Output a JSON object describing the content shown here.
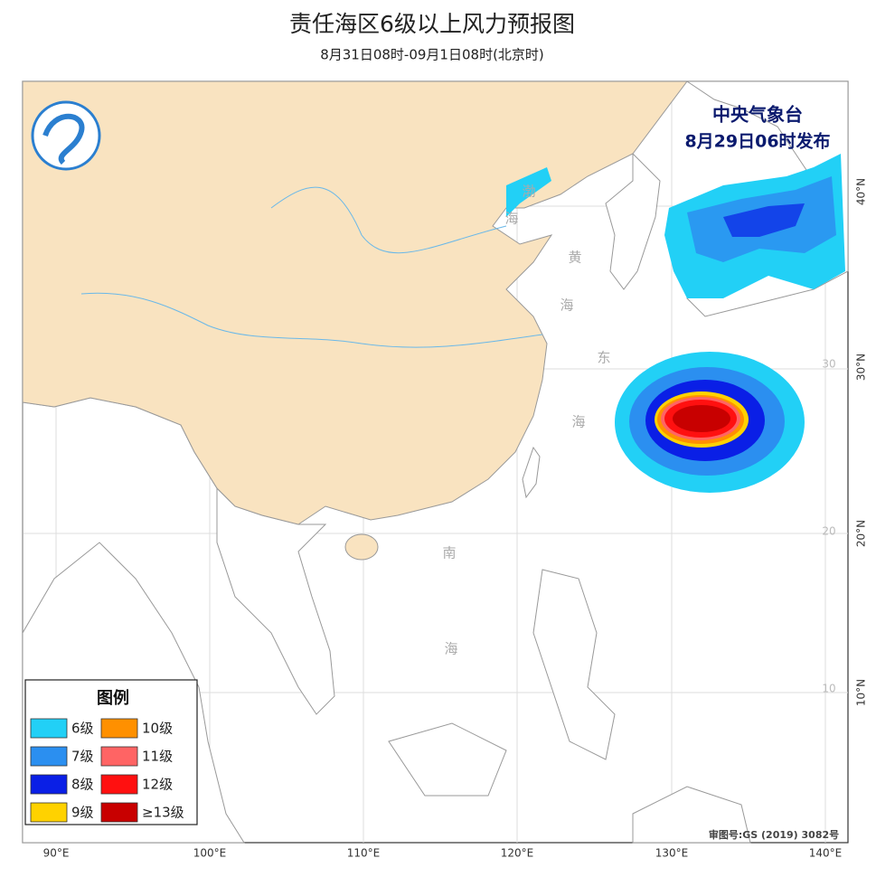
{
  "header": {
    "title": "责任海区6级以上风力预报图",
    "subtitle": "8月31日08时-09月1日08时(北京时)"
  },
  "issuer": {
    "agency": "中央气象台",
    "issued": "8月29日06时发布"
  },
  "legend": {
    "title": "图例",
    "items": [
      {
        "label": "6级",
        "color": "#22d0f6"
      },
      {
        "label": "7级",
        "color": "#2b8ff0"
      },
      {
        "label": "8级",
        "color": "#0a1fe6"
      },
      {
        "label": "9级",
        "color": "#ffd200"
      },
      {
        "label": "10级",
        "color": "#ff9000"
      },
      {
        "label": "11级",
        "color": "#ff6464"
      },
      {
        "label": "12级",
        "color": "#ff1010"
      },
      {
        "label": "≥13级",
        "color": "#c80000"
      }
    ]
  },
  "sea_labels": [
    "渤",
    "海",
    "黄",
    "海",
    "东",
    "海",
    "南",
    "海"
  ],
  "lon_labels": [
    "90°E",
    "100°E",
    "110°E",
    "120°E",
    "130°E",
    "140°E"
  ],
  "lat_labels": [
    "40°N",
    "30°N",
    "20°N",
    "10°N"
  ],
  "grid_labels": [
    "30",
    "20",
    "10"
  ],
  "approval": "审图号:GS (2019) 3082号"
}
